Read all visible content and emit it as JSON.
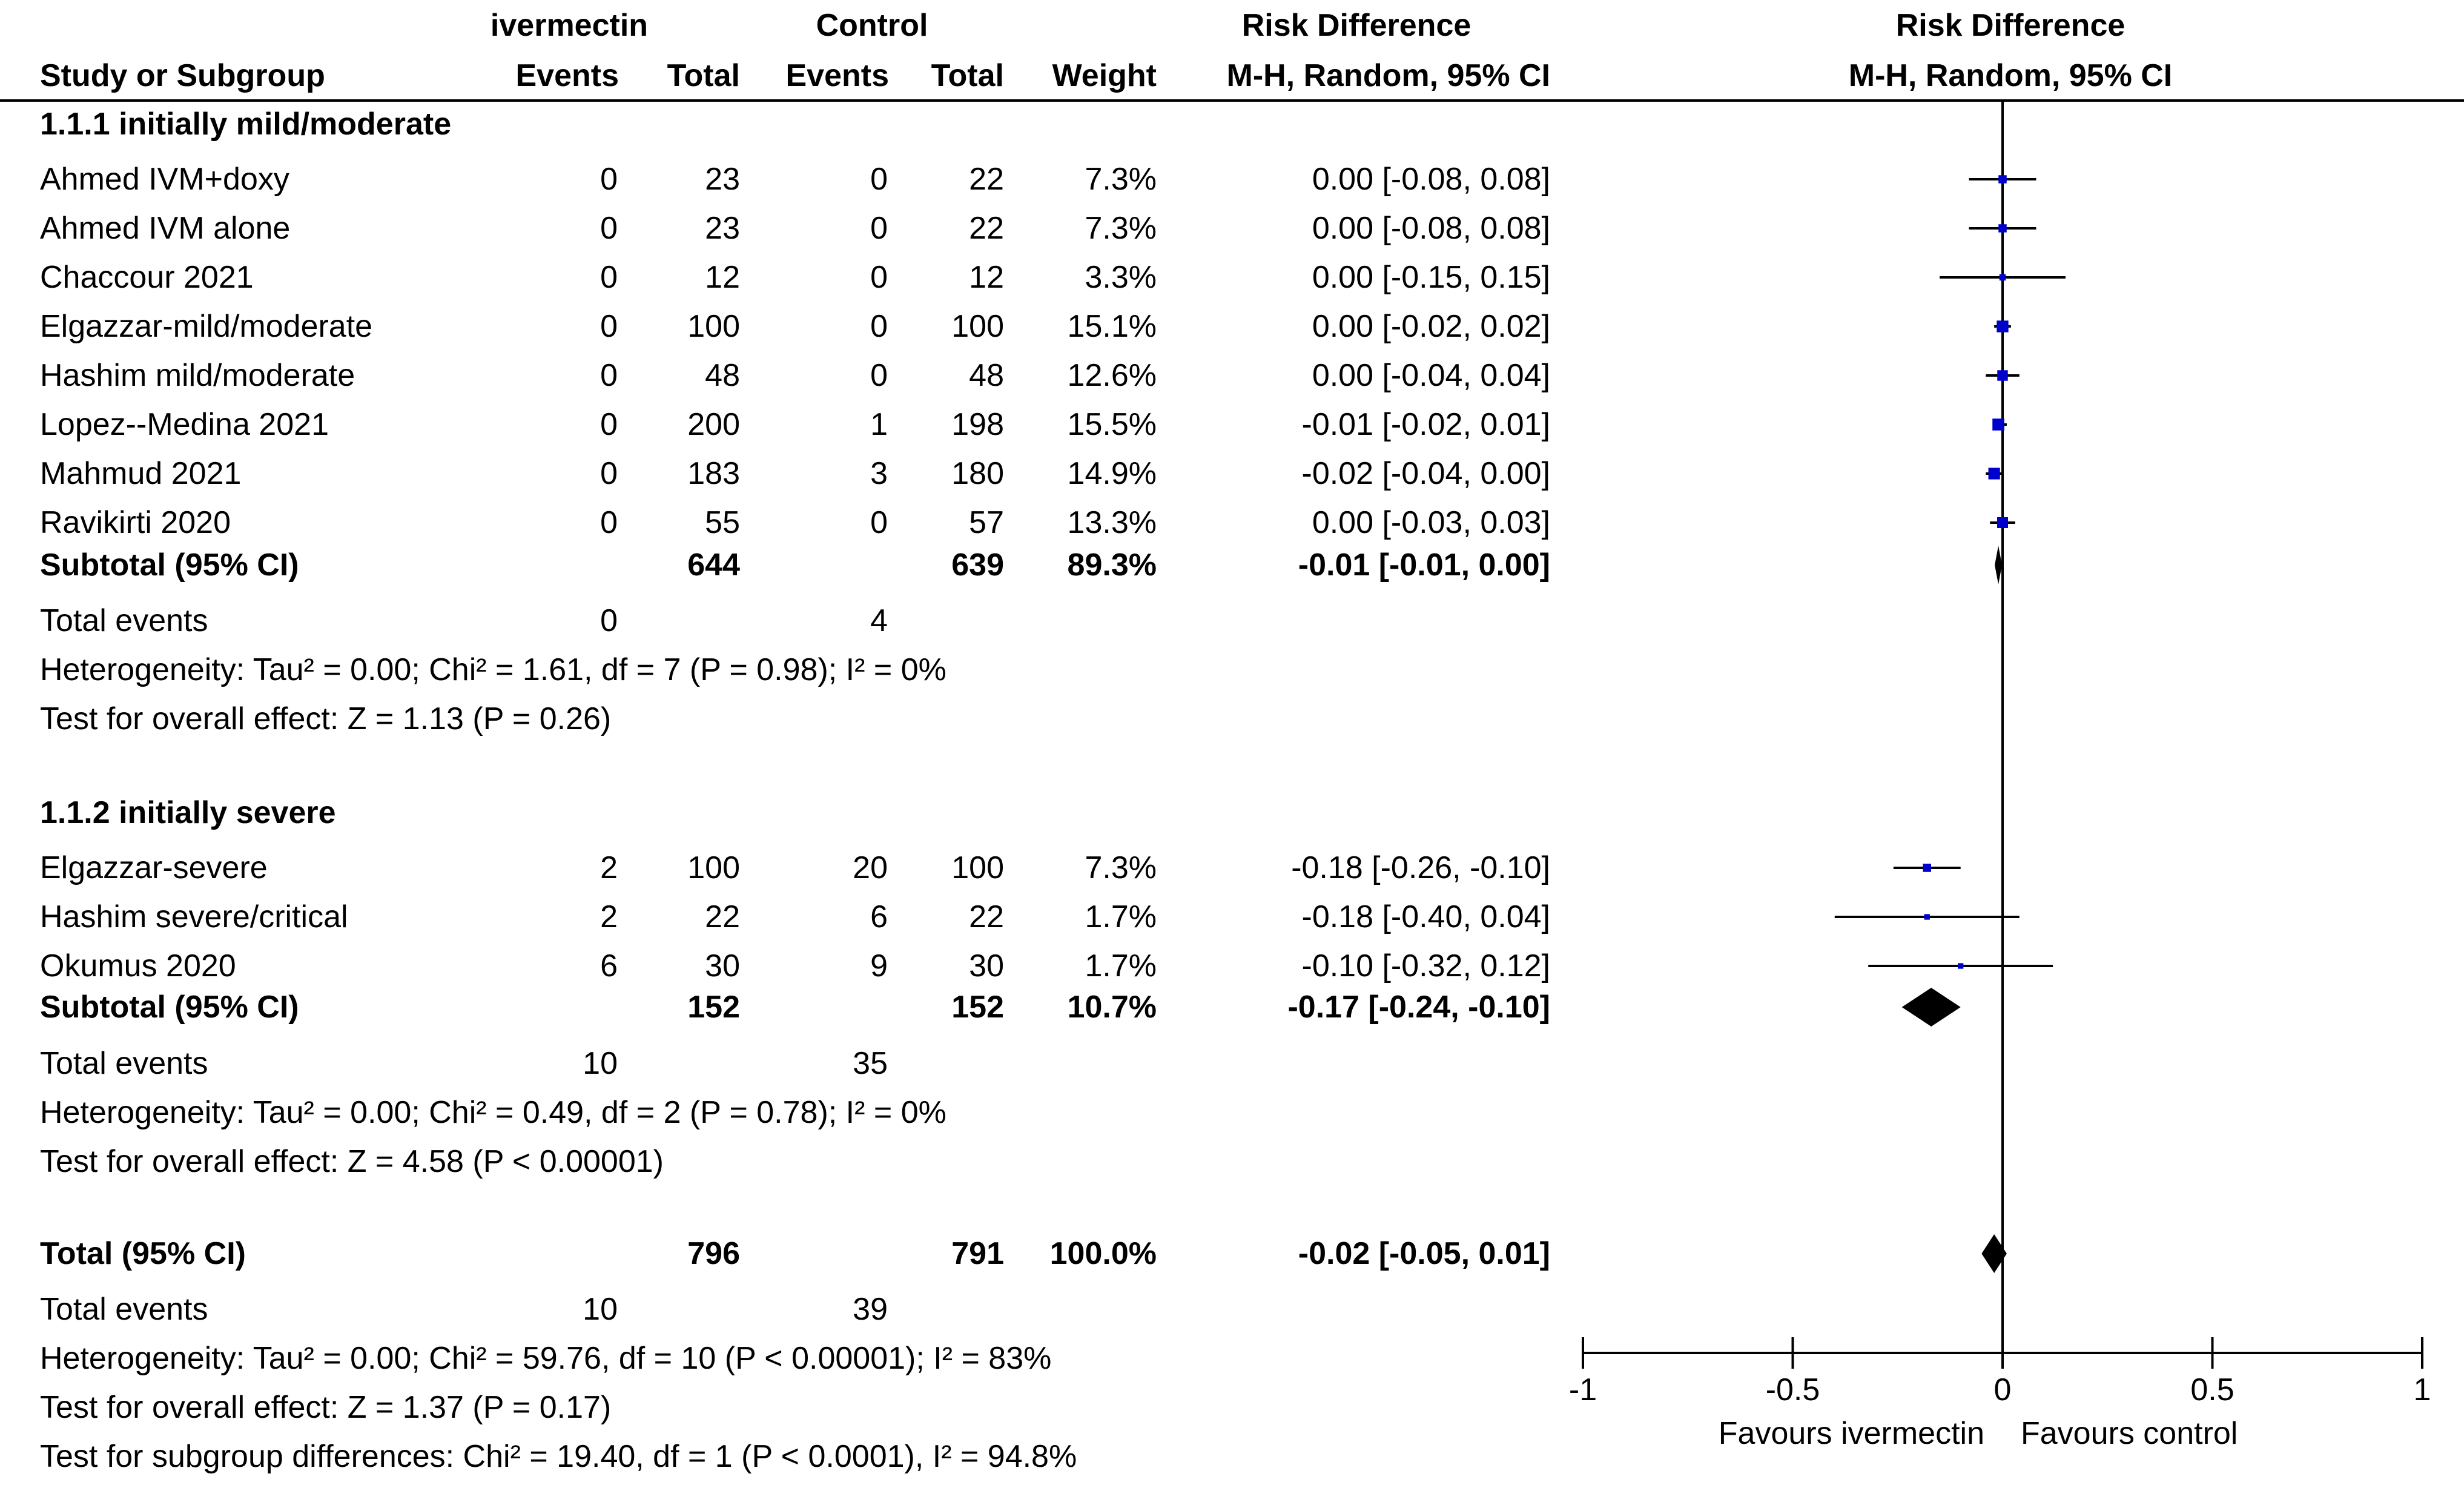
{
  "header": {
    "group1": "ivermectin",
    "group2": "Control",
    "rd_title": "Risk Difference",
    "plot_title": "Risk Difference",
    "study_col": "Study or Subgroup",
    "events": "Events",
    "total": "Total",
    "weight": "Weight",
    "method": "M-H, Random, 95% CI",
    "plot_method": "M-H, Random, 95% CI"
  },
  "subgroups": [
    {
      "title": "1.1.1 initially mild/moderate",
      "studies": [
        {
          "name": "Ahmed IVM+doxy",
          "e1": "0",
          "n1": "23",
          "e2": "0",
          "n2": "22",
          "weight": "7.3%",
          "ci": "0.00 [-0.08, 0.08]"
        },
        {
          "name": "Ahmed IVM alone",
          "e1": "0",
          "n1": "23",
          "e2": "0",
          "n2": "22",
          "weight": "7.3%",
          "ci": "0.00 [-0.08, 0.08]"
        },
        {
          "name": "Chaccour 2021",
          "e1": "0",
          "n1": "12",
          "e2": "0",
          "n2": "12",
          "weight": "3.3%",
          "ci": "0.00 [-0.15, 0.15]"
        },
        {
          "name": "Elgazzar-mild/moderate",
          "e1": "0",
          "n1": "100",
          "e2": "0",
          "n2": "100",
          "weight": "15.1%",
          "ci": "0.00 [-0.02, 0.02]"
        },
        {
          "name": "Hashim mild/moderate",
          "e1": "0",
          "n1": "48",
          "e2": "0",
          "n2": "48",
          "weight": "12.6%",
          "ci": "0.00 [-0.04, 0.04]"
        },
        {
          "name": "Lopez--Medina 2021",
          "e1": "0",
          "n1": "200",
          "e2": "1",
          "n2": "198",
          "weight": "15.5%",
          "ci": "-0.01 [-0.02, 0.01]"
        },
        {
          "name": "Mahmud 2021",
          "e1": "0",
          "n1": "183",
          "e2": "3",
          "n2": "180",
          "weight": "14.9%",
          "ci": "-0.02 [-0.04, 0.00]"
        },
        {
          "name": "Ravikirti 2020",
          "e1": "0",
          "n1": "55",
          "e2": "0",
          "n2": "57",
          "weight": "13.3%",
          "ci": "0.00 [-0.03, 0.03]"
        }
      ],
      "subtotal": {
        "label": "Subtotal (95% CI)",
        "n1": "644",
        "n2": "639",
        "weight": "89.3%",
        "ci": "-0.01 [-0.01, 0.00]"
      },
      "events": {
        "label": "Total events",
        "e1": "0",
        "e2": "4"
      },
      "heterogeneity": "Heterogeneity: Tau² = 0.00; Chi² = 1.61, df = 7 (P = 0.98); I² = 0%",
      "overall": "Test for overall effect: Z = 1.13 (P = 0.26)"
    },
    {
      "title": "1.1.2 initially severe",
      "studies": [
        {
          "name": "Elgazzar-severe",
          "e1": "2",
          "n1": "100",
          "e2": "20",
          "n2": "100",
          "weight": "7.3%",
          "ci": "-0.18 [-0.26, -0.10]"
        },
        {
          "name": "Hashim severe/critical",
          "e1": "2",
          "n1": "22",
          "e2": "6",
          "n2": "22",
          "weight": "1.7%",
          "ci": "-0.18 [-0.40, 0.04]"
        },
        {
          "name": "Okumus 2020",
          "e1": "6",
          "n1": "30",
          "e2": "9",
          "n2": "30",
          "weight": "1.7%",
          "ci": "-0.10 [-0.32, 0.12]"
        }
      ],
      "subtotal": {
        "label": "Subtotal (95% CI)",
        "n1": "152",
        "n2": "152",
        "weight": "10.7%",
        "ci": "-0.17 [-0.24, -0.10]"
      },
      "events": {
        "label": "Total events",
        "e1": "10",
        "e2": "35"
      },
      "heterogeneity": "Heterogeneity: Tau² = 0.00; Chi² = 0.49, df = 2 (P = 0.78); I² = 0%",
      "overall": "Test for overall effect: Z = 4.58 (P < 0.00001)"
    }
  ],
  "total": {
    "label": "Total (95% CI)",
    "n1": "796",
    "n2": "791",
    "weight": "100.0%",
    "ci": "-0.02 [-0.05, 0.01]",
    "events": {
      "label": "Total events",
      "e1": "10",
      "e2": "39"
    },
    "heterogeneity": "Heterogeneity: Tau² = 0.00; Chi² = 59.76, df = 10 (P < 0.00001); I² = 83%",
    "overall": "Test for overall effect: Z = 1.37 (P = 0.17)",
    "subgroup_diff": "Test for subgroup differences: Chi² = 19.40, df = 1 (P < 0.0001), I² = 94.8%"
  },
  "colors": {
    "marker": "#0000cc",
    "diamond": "#000000",
    "line": "#000000"
  },
  "chart_data": {
    "type": "forest",
    "xlim": [
      -1,
      1
    ],
    "ticks": [
      -1,
      -0.5,
      0,
      0.5,
      1
    ],
    "tick_labels": [
      "-1",
      "-0.5",
      "0",
      "0.5",
      "1"
    ],
    "favours_left": "Favours ivermectin",
    "favours_right": "Favours control",
    "studies": [
      {
        "name": "Ahmed IVM+doxy",
        "rd": 0.0,
        "lo": -0.08,
        "hi": 0.08,
        "weight": 7.3
      },
      {
        "name": "Ahmed IVM alone",
        "rd": 0.0,
        "lo": -0.08,
        "hi": 0.08,
        "weight": 7.3
      },
      {
        "name": "Chaccour 2021",
        "rd": 0.0,
        "lo": -0.15,
        "hi": 0.15,
        "weight": 3.3
      },
      {
        "name": "Elgazzar-mild/moderate",
        "rd": 0.0,
        "lo": -0.02,
        "hi": 0.02,
        "weight": 15.1
      },
      {
        "name": "Hashim mild/moderate",
        "rd": 0.0,
        "lo": -0.04,
        "hi": 0.04,
        "weight": 12.6
      },
      {
        "name": "Lopez--Medina 2021",
        "rd": -0.01,
        "lo": -0.02,
        "hi": 0.01,
        "weight": 15.5
      },
      {
        "name": "Mahmud 2021",
        "rd": -0.02,
        "lo": -0.04,
        "hi": 0.0,
        "weight": 14.9
      },
      {
        "name": "Ravikirti 2020",
        "rd": 0.0,
        "lo": -0.03,
        "hi": 0.03,
        "weight": 13.3
      },
      {
        "name": "Elgazzar-severe",
        "rd": -0.18,
        "lo": -0.26,
        "hi": -0.1,
        "weight": 7.3
      },
      {
        "name": "Hashim severe/critical",
        "rd": -0.18,
        "lo": -0.4,
        "hi": 0.04,
        "weight": 1.7
      },
      {
        "name": "Okumus 2020",
        "rd": -0.1,
        "lo": -0.32,
        "hi": 0.12,
        "weight": 1.7
      }
    ],
    "diamonds": [
      {
        "name": "Subtotal 1.1.1",
        "rd": -0.01,
        "lo": -0.01,
        "hi": 0.0
      },
      {
        "name": "Subtotal 1.1.2",
        "rd": -0.17,
        "lo": -0.24,
        "hi": -0.1
      },
      {
        "name": "Total",
        "rd": -0.02,
        "lo": -0.05,
        "hi": 0.01
      }
    ]
  }
}
